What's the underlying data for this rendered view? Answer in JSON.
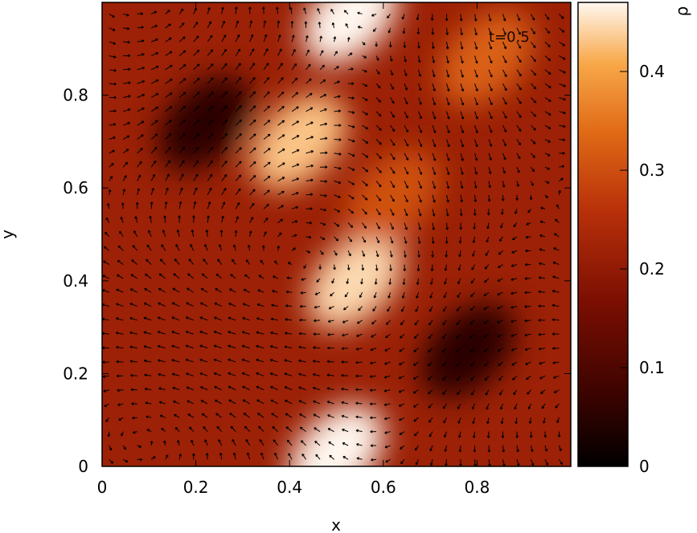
{
  "chart_data": [
    {
      "type": "heatmap",
      "title": "",
      "xlabel": "x",
      "ylabel": "y",
      "xlim": [
        0,
        1
      ],
      "ylim": [
        0,
        1
      ],
      "x_ticks": [
        "0",
        "0.2",
        "0.4",
        "0.6",
        "0.8"
      ],
      "y_ticks": [
        "0",
        "0.2",
        "0.4",
        "0.6",
        "0.8"
      ],
      "x_tick_values": [
        0,
        0.2,
        0.4,
        0.6,
        0.8
      ],
      "y_tick_values": [
        0,
        0.2,
        0.4,
        0.6,
        0.8
      ],
      "annotation": "t=0.5",
      "field": "density ρ with velocity vector overlay",
      "colormap": [
        "#000000",
        "#3a0300",
        "#7a0e02",
        "#b8300a",
        "#e06a16",
        "#f8a84a",
        "#fff8f0"
      ],
      "arrow_color": "#000000",
      "density_features": [
        {
          "x": 0.5,
          "y": 0.03,
          "rho": 0.47
        },
        {
          "x": 0.54,
          "y": 0.4,
          "rho": 0.44
        },
        {
          "x": 0.42,
          "y": 0.7,
          "rho": 0.42
        },
        {
          "x": 0.53,
          "y": 0.97,
          "rho": 0.47
        },
        {
          "x": 0.22,
          "y": 0.74,
          "rho": 0.06
        },
        {
          "x": 0.78,
          "y": 0.25,
          "rho": 0.06
        },
        {
          "x": 0.82,
          "y": 0.88,
          "rho": 0.3
        },
        {
          "x": 0.62,
          "y": 0.58,
          "rho": 0.28
        }
      ]
    },
    {
      "type": "heatmap",
      "title": "",
      "colorbar_label": "ρ",
      "ylim": [
        0,
        0.47
      ],
      "y_ticks": [
        "0",
        "0.1",
        "0.2",
        "0.3",
        "0.4"
      ],
      "y_tick_values": [
        0,
        0.1,
        0.2,
        0.3,
        0.4
      ]
    }
  ]
}
